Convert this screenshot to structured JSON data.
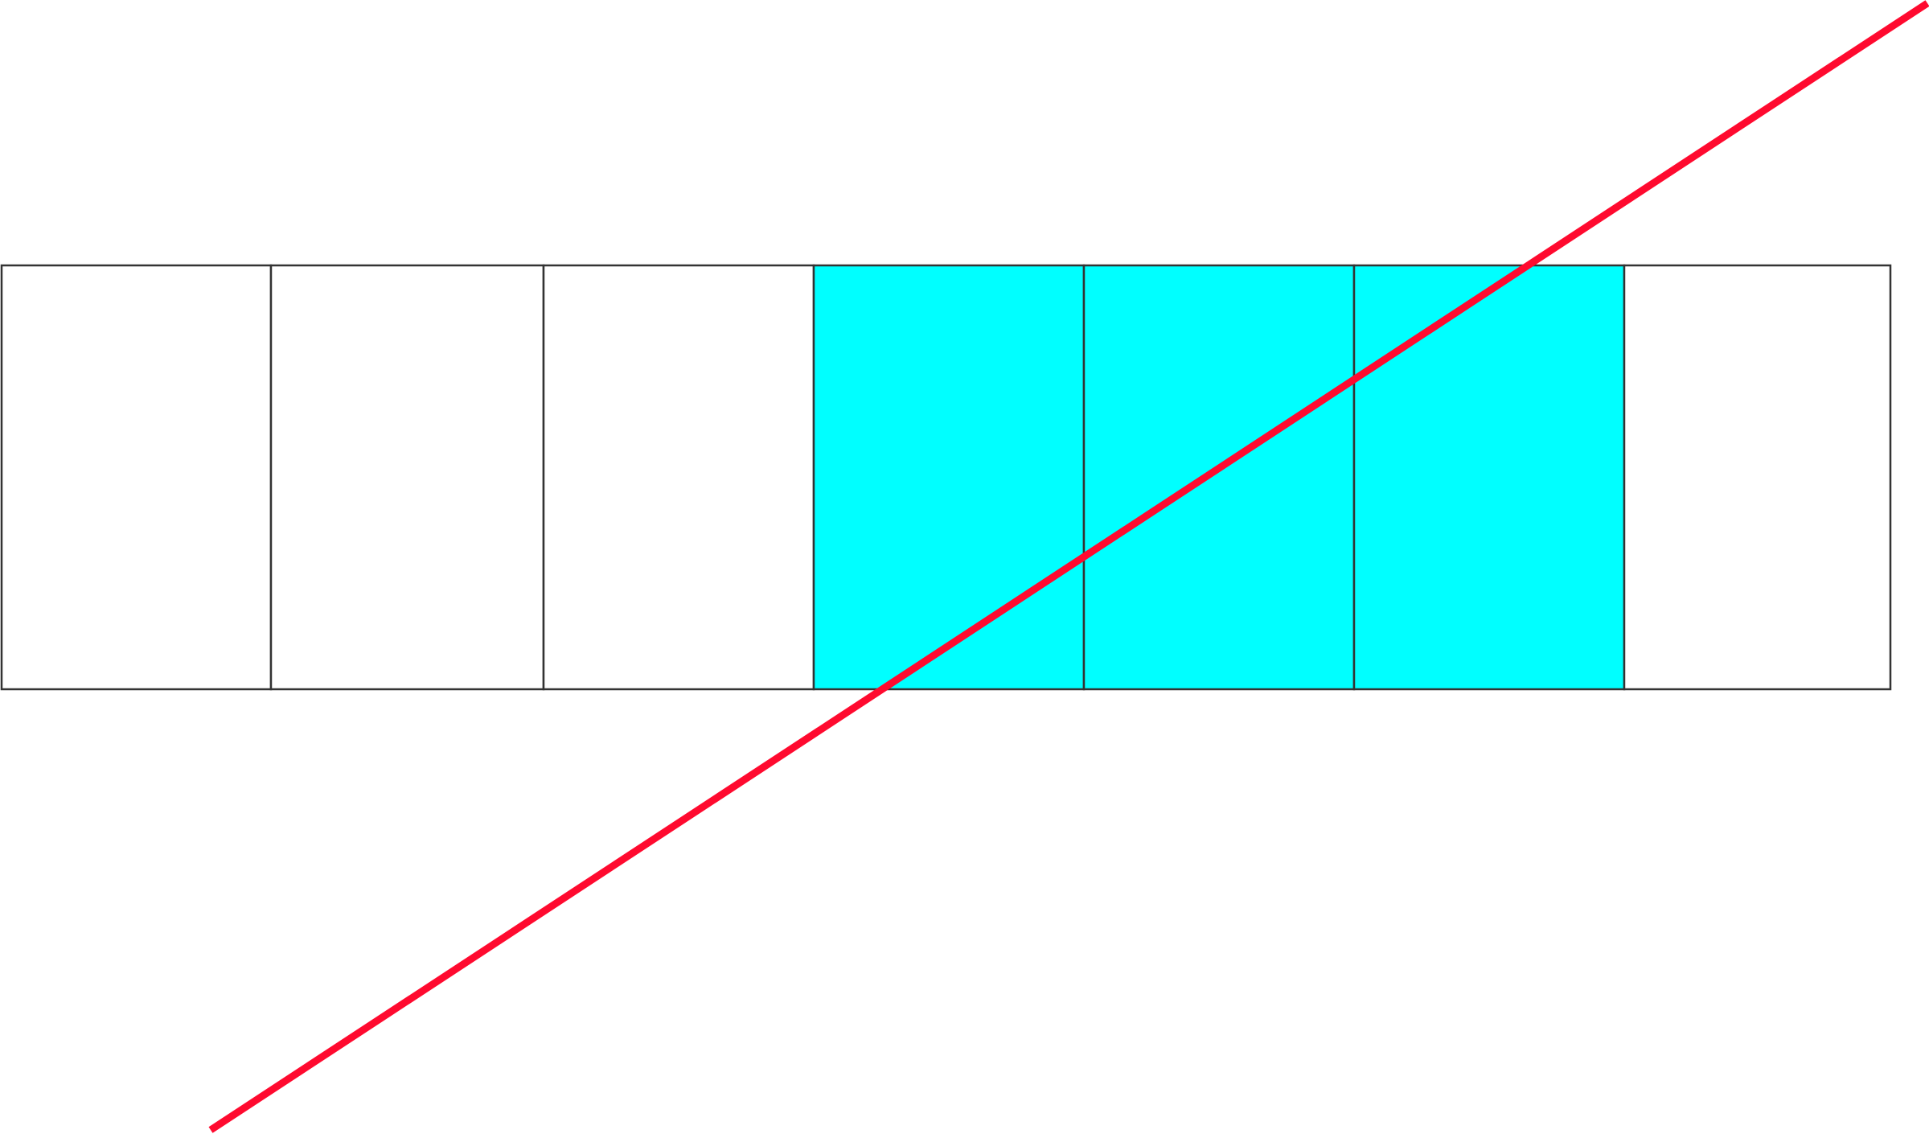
{
  "diagram": {
    "cell_count": 7,
    "cells": [
      {
        "index": 1,
        "highlighted": false
      },
      {
        "index": 2,
        "highlighted": false
      },
      {
        "index": 3,
        "highlighted": false
      },
      {
        "index": 4,
        "highlighted": true
      },
      {
        "index": 5,
        "highlighted": true
      },
      {
        "index": 6,
        "highlighted": true
      },
      {
        "index": 7,
        "highlighted": false
      }
    ],
    "highlighted_count": 3,
    "colors": {
      "highlight": "#00ffff",
      "cell_border": "#333333",
      "cell_background": "#ffffff",
      "line": "#ff0a2f"
    }
  }
}
